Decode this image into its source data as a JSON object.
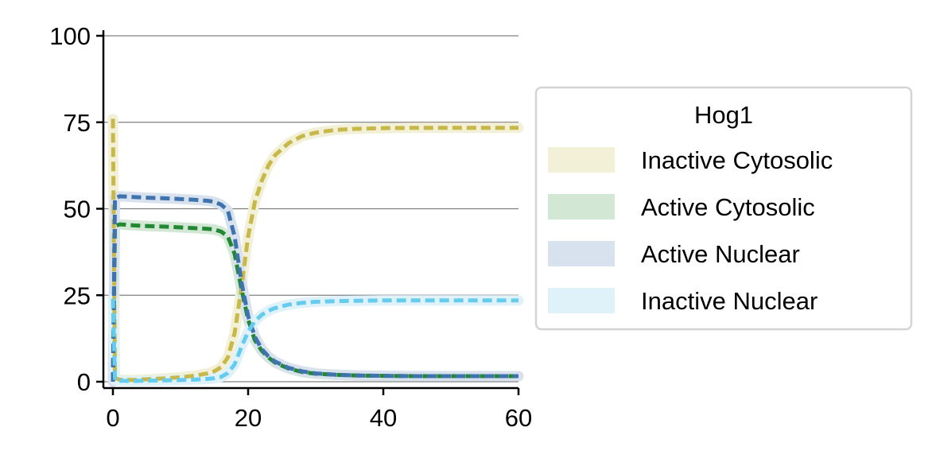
{
  "chart_data": {
    "type": "line",
    "title": "",
    "xlabel": "",
    "ylabel": "",
    "xlim": [
      -1.5,
      60
    ],
    "ylim": [
      -2,
      101
    ],
    "xticks": [
      0,
      20,
      40,
      60
    ],
    "yticks": [
      0,
      25,
      50,
      75,
      100
    ],
    "grid": "horizontal",
    "legend": {
      "title": "Hog1",
      "placement": "right"
    },
    "series": [
      {
        "name": "Inactive Cytosolic",
        "color": "#c8b84a",
        "band_color": "#f2f0d6",
        "x": [
          0,
          0.3,
          1,
          3,
          5,
          8,
          10,
          12,
          14,
          15,
          16,
          17,
          18,
          19,
          20,
          21,
          22,
          23,
          24,
          26,
          28,
          30,
          33,
          36,
          40,
          45,
          50,
          55,
          60
        ],
        "y": [
          76,
          1.0,
          0.6,
          0.5,
          0.7,
          1.0,
          1.3,
          1.7,
          2.4,
          3.0,
          4.2,
          7,
          14,
          27,
          42,
          52,
          58,
          62.5,
          65.5,
          69,
          71,
          72,
          72.8,
          73.1,
          73.3,
          73.4,
          73.4,
          73.4,
          73.4
        ]
      },
      {
        "name": "Active Cytosolic",
        "color": "#228833",
        "band_color": "#d2e7d4",
        "x": [
          0,
          0.3,
          1,
          3,
          5,
          8,
          10,
          12,
          14,
          15,
          16,
          17,
          18,
          19,
          20,
          21,
          22,
          23,
          24,
          26,
          28,
          30,
          33,
          36,
          40,
          45,
          50,
          55,
          60
        ],
        "y": [
          0,
          45,
          45.5,
          45.2,
          45,
          44.8,
          44.6,
          44.4,
          44.2,
          44,
          43.4,
          42,
          37,
          27,
          18,
          12,
          9,
          7,
          5.5,
          3.8,
          2.8,
          2.3,
          2.0,
          1.8,
          1.7,
          1.6,
          1.6,
          1.6,
          1.6
        ]
      },
      {
        "name": "Active Nuclear",
        "color": "#3f73ae",
        "band_color": "#d8e2ee",
        "x": [
          0,
          0.3,
          1,
          3,
          5,
          8,
          10,
          12,
          14,
          15,
          16,
          17,
          18,
          19,
          20,
          21,
          22,
          23,
          24,
          26,
          28,
          30,
          33,
          36,
          40,
          45,
          50,
          55,
          60
        ],
        "y": [
          0,
          53,
          53.6,
          53.4,
          53.2,
          53,
          52.8,
          52.6,
          52.3,
          52,
          51.2,
          49.5,
          42,
          29,
          19,
          13,
          9.5,
          7.3,
          5.8,
          4.0,
          3.0,
          2.4,
          2.0,
          1.8,
          1.7,
          1.6,
          1.6,
          1.6,
          1.6
        ]
      },
      {
        "name": "Inactive Nuclear",
        "color": "#66ccee",
        "band_color": "#dff2fa",
        "x": [
          0,
          0.3,
          1,
          3,
          5,
          8,
          10,
          12,
          14,
          15,
          16,
          17,
          18,
          19,
          20,
          21,
          22,
          23,
          24,
          26,
          28,
          30,
          33,
          36,
          40,
          45,
          50,
          55,
          60
        ],
        "y": [
          24,
          0.5,
          0.3,
          0.2,
          0.3,
          0.4,
          0.5,
          0.6,
          0.8,
          1.0,
          1.4,
          2.5,
          5,
          10,
          14.5,
          17.5,
          19.3,
          20.5,
          21.3,
          22.3,
          22.8,
          23.1,
          23.3,
          23.4,
          23.5,
          23.5,
          23.5,
          23.5,
          23.5
        ]
      }
    ]
  }
}
